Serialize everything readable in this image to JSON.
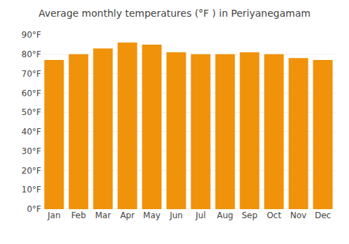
{
  "chart_data": {
    "type": "bar",
    "title": "Average monthly temperatures (°F ) in Periyanegamam",
    "categories": [
      "Jan",
      "Feb",
      "Mar",
      "Apr",
      "May",
      "Jun",
      "Jul",
      "Aug",
      "Sep",
      "Oct",
      "Nov",
      "Dec"
    ],
    "values": [
      77,
      80,
      83,
      86,
      85,
      81,
      80,
      80,
      81,
      80,
      78,
      77
    ],
    "color": "#F0920A",
    "ylim": [
      0,
      90
    ],
    "yticks": [
      {
        "value": 0,
        "label": "0°F"
      },
      {
        "value": 10,
        "label": "10°F"
      },
      {
        "value": 20,
        "label": "20°F"
      },
      {
        "value": 30,
        "label": "30°F"
      },
      {
        "value": 40,
        "label": "40°F"
      },
      {
        "value": 50,
        "label": "50°F"
      },
      {
        "value": 60,
        "label": "60°F"
      },
      {
        "value": 70,
        "label": "70°F"
      },
      {
        "value": 80,
        "label": "80°F"
      },
      {
        "value": 90,
        "label": "90°F"
      }
    ],
    "grid": true
  }
}
